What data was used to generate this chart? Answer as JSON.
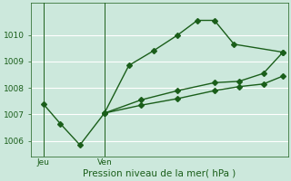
{
  "background_color": "#cce8dc",
  "grid_color": "#ffffff",
  "line_color": "#1a5e1a",
  "ylabel": "Pression niveau de la mer( hPa )",
  "ylim": [
    1005.4,
    1011.2
  ],
  "xlim": [
    0,
    10.5
  ],
  "yticks": [
    1006,
    1007,
    1008,
    1009,
    1010
  ],
  "xtick_pos": [
    0.5,
    3.0
  ],
  "xtick_lab": [
    "Jeu",
    "Ven"
  ],
  "vline_x": [
    0.5,
    3.0
  ],
  "line1_x": [
    0.5,
    1.2,
    2.0,
    3.0,
    4.0,
    5.0,
    6.0,
    6.8,
    7.5,
    8.3,
    10.3
  ],
  "line1_y": [
    1007.4,
    1006.65,
    1005.85,
    1007.05,
    1008.85,
    1009.4,
    1010.0,
    1010.55,
    1010.55,
    1009.65,
    1009.35
  ],
  "line2_x": [
    3.0,
    4.5,
    6.0,
    7.5,
    8.5,
    9.5,
    10.3
  ],
  "line2_y": [
    1007.05,
    1007.55,
    1007.9,
    1008.2,
    1008.25,
    1008.55,
    1009.35
  ],
  "line3_x": [
    3.0,
    4.5,
    6.0,
    7.5,
    8.5,
    9.5,
    10.3
  ],
  "line3_y": [
    1007.05,
    1007.35,
    1007.6,
    1007.9,
    1008.05,
    1008.15,
    1008.45
  ],
  "marker_size": 3,
  "line_width": 1.0,
  "tick_fontsize": 6.5,
  "label_fontsize": 7.5
}
